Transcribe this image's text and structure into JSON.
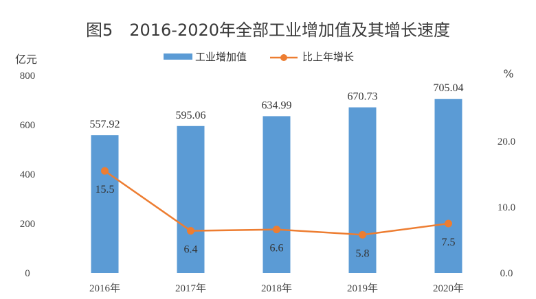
{
  "chart_data": {
    "type": "bar",
    "title": "图5　2016-2020年全部工业增加值及其增长速度",
    "categories": [
      "2016年",
      "2017年",
      "2018年",
      "2019年",
      "2020年"
    ],
    "y_left_unit": "亿元",
    "y_right_unit": "%",
    "ylim_left": [
      0,
      800
    ],
    "yticks_left": [
      "0",
      "200",
      "400",
      "600",
      "800"
    ],
    "ylim_right": [
      0,
      30
    ],
    "yticks_right": [
      "0.0",
      "10.0",
      "20.0"
    ],
    "grid": false,
    "legend_position": "top-center",
    "series": [
      {
        "name": "工业增加值",
        "type": "bar",
        "axis": "left",
        "color": "#5b9bd5",
        "values": [
          557.92,
          595.06,
          634.99,
          670.73,
          705.04
        ],
        "labels": [
          "557.92",
          "595.06",
          "634.99",
          "670.73",
          "705.04"
        ]
      },
      {
        "name": "比上年增长",
        "type": "line",
        "axis": "right",
        "color": "#ed7d31",
        "values": [
          15.5,
          6.4,
          6.6,
          5.8,
          7.5
        ],
        "labels": [
          "15.5",
          "6.4",
          "6.6",
          "5.8",
          "7.5"
        ]
      }
    ]
  }
}
